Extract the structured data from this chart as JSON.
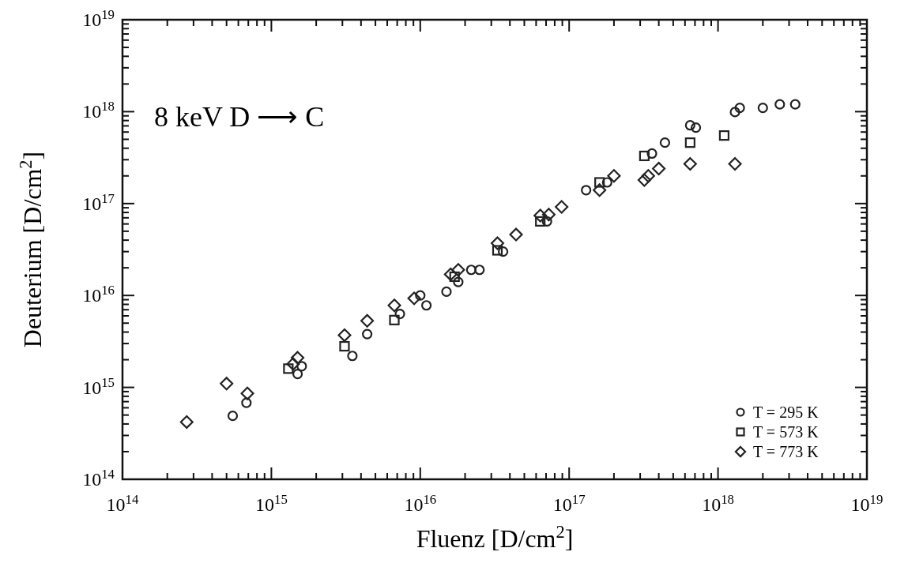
{
  "chart_data": {
    "type": "scatter",
    "xlabel": "Fluenz [D/cm$^{2}$]",
    "ylabel": "Deuterium [D/cm$^{2}$]",
    "annotations": [
      "8 keV  D ⟶ C"
    ],
    "log": "xy",
    "grid": false,
    "legend": "bottom right",
    "xlim": [
      100000000000000.0,
      1e+19
    ],
    "ylim": [
      100000000000000.0,
      1e+19
    ],
    "xticks": [
      {
        "value": 100000000000000.0,
        "label": "10$^{14}$"
      },
      {
        "value": 200000000000000.0,
        "label": null
      },
      {
        "value": 300000000000000.0,
        "label": null
      },
      {
        "value": 400000000000000.0,
        "label": null
      },
      {
        "value": 500000000000000.0,
        "label": null
      },
      {
        "value": 600000000000000.0,
        "label": null
      },
      {
        "value": 700000000000000.0,
        "label": null
      },
      {
        "value": 800000000000000.0,
        "label": null
      },
      {
        "value": 900000000000000.0,
        "label": null
      },
      {
        "value": 1000000000000000.0,
        "label": "10$^{15}$"
      },
      {
        "value": 2000000000000000.0,
        "label": null
      },
      {
        "value": 3000000000000000.0,
        "label": null
      },
      {
        "value": 4000000000000000.0,
        "label": null
      },
      {
        "value": 5000000000000000.0,
        "label": null
      },
      {
        "value": 6000000000000000.0,
        "label": null
      },
      {
        "value": 7000000000000000.0,
        "label": null
      },
      {
        "value": 8000000000000000.0,
        "label": null
      },
      {
        "value": 9000000000000000.0,
        "label": null
      },
      {
        "value": 1e+16,
        "label": "10$^{16}$"
      },
      {
        "value": 2e+16,
        "label": null
      },
      {
        "value": 3e+16,
        "label": null
      },
      {
        "value": 4e+16,
        "label": null
      },
      {
        "value": 5e+16,
        "label": null
      },
      {
        "value": 6e+16,
        "label": null
      },
      {
        "value": 7e+16,
        "label": null
      },
      {
        "value": 8e+16,
        "label": null
      },
      {
        "value": 9e+16,
        "label": null
      },
      {
        "value": 1e+17,
        "label": "10$^{17}$"
      },
      {
        "value": 2e+17,
        "label": null
      },
      {
        "value": 3e+17,
        "label": null
      },
      {
        "value": 4e+17,
        "label": null
      },
      {
        "value": 5e+17,
        "label": null
      },
      {
        "value": 6e+17,
        "label": null
      },
      {
        "value": 7e+17,
        "label": null
      },
      {
        "value": 8e+17,
        "label": null
      },
      {
        "value": 9e+17,
        "label": null
      },
      {
        "value": 1e+18,
        "label": "10$^{18}$"
      },
      {
        "value": 2e+18,
        "label": null
      },
      {
        "value": 3e+18,
        "label": null
      },
      {
        "value": 4e+18,
        "label": null
      },
      {
        "value": 5e+18,
        "label": null
      },
      {
        "value": 6e+18,
        "label": null
      },
      {
        "value": 7e+18,
        "label": null
      },
      {
        "value": 8e+18,
        "label": null
      },
      {
        "value": 9e+18,
        "label": null
      },
      {
        "value": 1e+19,
        "label": "10$^{19}$"
      }
    ],
    "yticks": [
      {
        "value": 100000000000000.0,
        "label": "10$^{14}$"
      },
      {
        "value": 200000000000000.0,
        "label": null
      },
      {
        "value": 300000000000000.0,
        "label": null
      },
      {
        "value": 400000000000000.0,
        "label": null
      },
      {
        "value": 500000000000000.0,
        "label": null
      },
      {
        "value": 600000000000000.0,
        "label": null
      },
      {
        "value": 700000000000000.0,
        "label": null
      },
      {
        "value": 800000000000000.0,
        "label": null
      },
      {
        "value": 900000000000000.0,
        "label": null
      },
      {
        "value": 1000000000000000.0,
        "label": "10$^{15}$"
      },
      {
        "value": 2000000000000000.0,
        "label": null
      },
      {
        "value": 3000000000000000.0,
        "label": null
      },
      {
        "value": 4000000000000000.0,
        "label": null
      },
      {
        "value": 5000000000000000.0,
        "label": null
      },
      {
        "value": 6000000000000000.0,
        "label": null
      },
      {
        "value": 7000000000000000.0,
        "label": null
      },
      {
        "value": 8000000000000000.0,
        "label": null
      },
      {
        "value": 9000000000000000.0,
        "label": null
      },
      {
        "value": 1e+16,
        "label": "10$^{16}$"
      },
      {
        "value": 2e+16,
        "label": null
      },
      {
        "value": 3e+16,
        "label": null
      },
      {
        "value": 4e+16,
        "label": null
      },
      {
        "value": 5e+16,
        "label": null
      },
      {
        "value": 6e+16,
        "label": null
      },
      {
        "value": 7e+16,
        "label": null
      },
      {
        "value": 8e+16,
        "label": null
      },
      {
        "value": 9e+16,
        "label": null
      },
      {
        "value": 1e+17,
        "label": "10$^{17}$"
      },
      {
        "value": 2e+17,
        "label": null
      },
      {
        "value": 3e+17,
        "label": null
      },
      {
        "value": 4e+17,
        "label": null
      },
      {
        "value": 5e+17,
        "label": null
      },
      {
        "value": 6e+17,
        "label": null
      },
      {
        "value": 7e+17,
        "label": null
      },
      {
        "value": 8e+17,
        "label": null
      },
      {
        "value": 9e+17,
        "label": null
      },
      {
        "value": 1e+18,
        "label": "10$^{18}$"
      },
      {
        "value": 2e+18,
        "label": null
      },
      {
        "value": 3e+18,
        "label": null
      },
      {
        "value": 4e+18,
        "label": null
      },
      {
        "value": 5e+18,
        "label": null
      },
      {
        "value": 6e+18,
        "label": null
      },
      {
        "value": 7e+18,
        "label": null
      },
      {
        "value": 8e+18,
        "label": null
      },
      {
        "value": 9e+18,
        "label": null
      },
      {
        "value": 1e+19,
        "label": "10$^{19}$"
      }
    ],
    "series": [
      {
        "name": "T = 295 K",
        "color": "#222222",
        "marker": "circle",
        "x": [
          550000000000000.0,
          680000000000000.0,
          1500000000000000.0,
          1600000000000000.0,
          3500000000000000.0,
          4400000000000000.0,
          7300000000000000.0,
          1e+16,
          1.1e+16,
          1.5e+16,
          1.8e+16,
          2.2e+16,
          2.5e+16,
          3.6e+16,
          7.1e+16,
          1.3e+17,
          1.8e+17,
          3.6e+17,
          4.4e+17,
          6.5e+17,
          7.1e+17,
          1.3e+18,
          1.4e+18,
          2e+18,
          2.6e+18,
          3.3e+18
        ],
        "values": [
          490000000000000.0,
          680000000000000.0,
          1400000000000000.0,
          1700000000000000.0,
          2200000000000000.0,
          3800000000000000.0,
          6300000000000000.0,
          1e+16,
          7800000000000000.0,
          1.1e+16,
          1.4e+16,
          1.9e+16,
          1.9e+16,
          3e+16,
          6.4e+16,
          1.4e+17,
          1.7e+17,
          3.5e+17,
          4.6e+17,
          7.1e+17,
          6.7e+17,
          9.9e+17,
          1.1e+18,
          1.1e+18,
          1.2e+18,
          1.2e+18
        ]
      },
      {
        "name": "T = 573 K",
        "color": "#222222",
        "marker": "square",
        "x": [
          1300000000000000.0,
          3100000000000000.0,
          6700000000000000.0,
          1.7e+16,
          3.3e+16,
          6.4e+16,
          1.6e+17,
          3.2e+17,
          6.5e+17,
          1.1e+18
        ],
        "values": [
          1600000000000000.0,
          2800000000000000.0,
          5400000000000000.0,
          1.6e+16,
          3.1e+16,
          6.4e+16,
          1.7e+17,
          3.3e+17,
          4.6e+17,
          5.5e+17
        ]
      },
      {
        "name": "T = 773 K",
        "color": "#222222",
        "marker": "diamond",
        "x": [
          270000000000000.0,
          500000000000000.0,
          690000000000000.0,
          1400000000000000.0,
          1500000000000000.0,
          3100000000000000.0,
          4400000000000000.0,
          6700000000000000.0,
          9100000000000000.0,
          1.6e+16,
          1.8e+16,
          3.3e+16,
          4.4e+16,
          6.4e+16,
          7.3e+16,
          8.9e+16,
          1.6e+17,
          2e+17,
          3.2e+17,
          3.4e+17,
          4e+17,
          6.5e+17,
          1.3e+18
        ],
        "values": [
          420000000000000.0,
          1100000000000000.0,
          860000000000000.0,
          1800000000000000.0,
          2100000000000000.0,
          3700000000000000.0,
          5300000000000000.0,
          7800000000000000.0,
          9300000000000000.0,
          1.7e+16,
          1.9e+16,
          3.7e+16,
          4.6e+16,
          7.4e+16,
          7.6e+16,
          9.2e+16,
          1.4e+17,
          2e+17,
          1.8e+17,
          2e+17,
          2.4e+17,
          2.7e+17,
          2.7e+17
        ]
      }
    ]
  }
}
